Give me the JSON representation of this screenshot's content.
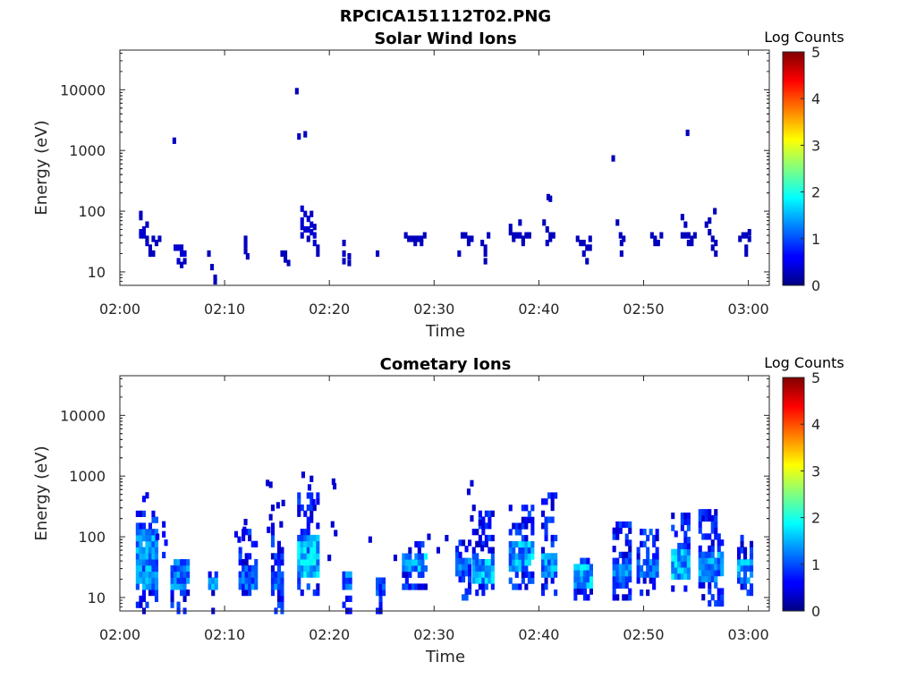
{
  "figure": {
    "title": "RPCICA151112T02.PNG"
  },
  "colorbar": {
    "label": "Log Counts",
    "range": [
      0,
      5
    ],
    "ticks": [
      "0",
      "1",
      "2",
      "3",
      "4",
      "5"
    ],
    "colormap": "jet"
  },
  "chart_data": [
    {
      "type": "heatmap",
      "title": "Solar Wind Ions",
      "xlabel": "Time",
      "ylabel": "Energy (eV)",
      "xlim": [
        "02:00",
        "03:02"
      ],
      "ylim": [
        6,
        45000
      ],
      "yscale": "log",
      "xticks": [
        "02:00",
        "02:10",
        "02:20",
        "02:30",
        "02:40",
        "02:50",
        "03:00"
      ],
      "yticks": [
        10,
        100,
        1000,
        10000
      ],
      "ytick_labels": [
        "10",
        "100",
        "1000",
        "10000"
      ],
      "grid": false,
      "points": [
        [
          2,
          90,
          0.3
        ],
        [
          2,
          80,
          0.3
        ],
        [
          2,
          45,
          0.4
        ],
        [
          2,
          40,
          0.4
        ],
        [
          2.3,
          50,
          0.4
        ],
        [
          2.3,
          40,
          0.4
        ],
        [
          2.6,
          35,
          0.3
        ],
        [
          2.6,
          30,
          0.3
        ],
        [
          2.9,
          25,
          0.3
        ],
        [
          2.9,
          20,
          0.3
        ],
        [
          2.6,
          60,
          0.3
        ],
        [
          3.2,
          35,
          0.3
        ],
        [
          3.2,
          20,
          0.3
        ],
        [
          3.5,
          30,
          0.3
        ],
        [
          3.8,
          35,
          0.3
        ],
        [
          5.2,
          1450,
          0.3
        ],
        [
          5.3,
          25,
          0.4
        ],
        [
          5.6,
          25,
          0.4
        ],
        [
          5.9,
          25,
          0.4
        ],
        [
          5.9,
          20,
          0.4
        ],
        [
          6.2,
          20,
          0.4
        ],
        [
          5.6,
          15,
          0.4
        ],
        [
          6.2,
          15,
          0.3
        ],
        [
          5.9,
          13,
          0.3
        ],
        [
          8.5,
          20,
          0.3
        ],
        [
          8.8,
          12,
          0.3
        ],
        [
          9.1,
          8,
          0.3
        ],
        [
          9.1,
          7,
          0.3
        ],
        [
          12,
          35,
          0.3
        ],
        [
          12,
          28,
          0.3
        ],
        [
          12,
          22,
          0.3
        ],
        [
          12.2,
          18,
          0.3
        ],
        [
          15.5,
          20,
          0.3
        ],
        [
          15.8,
          20,
          0.3
        ],
        [
          15.8,
          16,
          0.3
        ],
        [
          16.1,
          14,
          0.3
        ],
        [
          16.9,
          9500,
          0.3
        ],
        [
          17.1,
          1700,
          0.3
        ],
        [
          17.7,
          1850,
          0.3
        ],
        [
          17.4,
          110,
          0.4
        ],
        [
          17.7,
          90,
          0.4
        ],
        [
          17.4,
          70,
          0.4
        ],
        [
          18,
          75,
          0.4
        ],
        [
          17.4,
          55,
          0.4
        ],
        [
          17.7,
          50,
          0.4
        ],
        [
          18,
          50,
          0.4
        ],
        [
          18.3,
          60,
          0.4
        ],
        [
          18.3,
          45,
          0.4
        ],
        [
          18.6,
          40,
          0.4
        ],
        [
          17.4,
          40,
          0.4
        ],
        [
          18.6,
          30,
          0.4
        ],
        [
          18.9,
          25,
          0.3
        ],
        [
          18.9,
          20,
          0.3
        ],
        [
          18.3,
          90,
          0.3
        ],
        [
          18.6,
          55,
          0.3
        ],
        [
          18,
          35,
          0.3
        ],
        [
          21.4,
          30,
          0.3
        ],
        [
          21.4,
          20,
          0.3
        ],
        [
          21.4,
          15,
          0.3
        ],
        [
          21.9,
          18,
          0.3
        ],
        [
          21.9,
          14,
          0.3
        ],
        [
          24.6,
          20,
          0.3
        ],
        [
          27.3,
          40,
          0.3
        ],
        [
          27.6,
          35,
          0.3
        ],
        [
          27.9,
          35,
          0.3
        ],
        [
          28.2,
          35,
          0.3
        ],
        [
          28.5,
          35,
          0.3
        ],
        [
          28.8,
          35,
          0.3
        ],
        [
          29.1,
          40,
          0.3
        ],
        [
          28.2,
          30,
          0.3
        ],
        [
          28.8,
          30,
          0.3
        ],
        [
          32.4,
          20,
          0.3
        ],
        [
          32.7,
          40,
          0.3
        ],
        [
          33,
          40,
          0.3
        ],
        [
          33.3,
          35,
          0.3
        ],
        [
          33.6,
          35,
          0.3
        ],
        [
          33.3,
          30,
          0.3
        ],
        [
          34.6,
          30,
          0.3
        ],
        [
          34.9,
          25,
          0.3
        ],
        [
          34.9,
          20,
          0.3
        ],
        [
          34.9,
          15,
          0.3
        ],
        [
          35.2,
          40,
          0.3
        ],
        [
          37.3,
          55,
          0.3
        ],
        [
          37.3,
          45,
          0.3
        ],
        [
          37.6,
          40,
          0.3
        ],
        [
          37.9,
          40,
          0.3
        ],
        [
          38.2,
          40,
          0.3
        ],
        [
          38.5,
          35,
          0.3
        ],
        [
          38.8,
          40,
          0.3
        ],
        [
          37.6,
          35,
          0.3
        ],
        [
          38.5,
          30,
          0.3
        ],
        [
          39.1,
          40,
          0.3
        ],
        [
          38.2,
          65,
          0.3
        ],
        [
          40.9,
          170,
          0.3
        ],
        [
          41.1,
          160,
          0.3
        ],
        [
          40.5,
          65,
          0.3
        ],
        [
          40.8,
          50,
          0.3
        ],
        [
          41.1,
          40,
          0.3
        ],
        [
          41.1,
          35,
          0.3
        ],
        [
          41.4,
          40,
          0.3
        ],
        [
          40.8,
          30,
          0.3
        ],
        [
          43.7,
          35,
          0.3
        ],
        [
          44,
          30,
          0.3
        ],
        [
          44.3,
          30,
          0.3
        ],
        [
          44.6,
          25,
          0.3
        ],
        [
          44.9,
          25,
          0.3
        ],
        [
          44.3,
          20,
          0.3
        ],
        [
          44.6,
          15,
          0.3
        ],
        [
          44.9,
          35,
          0.3
        ],
        [
          47.1,
          740,
          0.3
        ],
        [
          47.5,
          65,
          0.3
        ],
        [
          47.8,
          40,
          0.3
        ],
        [
          48.1,
          35,
          0.3
        ],
        [
          47.9,
          30,
          0.3
        ],
        [
          47.9,
          20,
          0.3
        ],
        [
          50.8,
          40,
          0.3
        ],
        [
          51.1,
          35,
          0.3
        ],
        [
          51.4,
          30,
          0.3
        ],
        [
          51.7,
          40,
          0.3
        ],
        [
          51.1,
          30,
          0.3
        ],
        [
          53.7,
          80,
          0.3
        ],
        [
          54,
          60,
          0.3
        ],
        [
          53.7,
          40,
          0.3
        ],
        [
          54,
          40,
          0.3
        ],
        [
          54.3,
          40,
          0.3
        ],
        [
          54.6,
          35,
          0.3
        ],
        [
          54.3,
          30,
          0.3
        ],
        [
          54.6,
          30,
          0.3
        ],
        [
          54.9,
          40,
          0.3
        ],
        [
          54.2,
          1950,
          0.3
        ],
        [
          56,
          60,
          0.3
        ],
        [
          56.3,
          45,
          0.3
        ],
        [
          56.6,
          35,
          0.3
        ],
        [
          56.9,
          30,
          0.3
        ],
        [
          56.6,
          25,
          0.3
        ],
        [
          56.9,
          20,
          0.3
        ],
        [
          56.8,
          100,
          0.3
        ],
        [
          56.3,
          70,
          0.3
        ],
        [
          59.2,
          35,
          0.3
        ],
        [
          59.5,
          40,
          0.3
        ],
        [
          59.8,
          40,
          0.3
        ],
        [
          60.1,
          35,
          0.3
        ],
        [
          59.8,
          25,
          0.3
        ],
        [
          59.8,
          20,
          0.3
        ],
        [
          60.1,
          45,
          0.3
        ]
      ]
    },
    {
      "type": "heatmap",
      "title": "Cometary Ions",
      "xlabel": "Time",
      "ylabel": "Energy (eV)",
      "xlim": [
        "02:00",
        "03:02"
      ],
      "ylim": [
        6,
        45000
      ],
      "yscale": "log",
      "xticks": [
        "02:00",
        "02:10",
        "02:20",
        "02:30",
        "02:40",
        "02:50",
        "03:00"
      ],
      "yticks": [
        10,
        100,
        1000,
        10000
      ],
      "ytick_labels": [
        "10",
        "100",
        "1000",
        "10000"
      ],
      "grid": false,
      "clusters": [
        {
          "t0": 1.7,
          "t1": 3.6,
          "lo": 12,
          "hi": 120,
          "peak": 1.8,
          "top": 260,
          "bottom": 6
        },
        {
          "t0": 5.0,
          "t1": 6.6,
          "lo": 15,
          "hi": 40,
          "peak": 1.6,
          "top": 45,
          "bottom": 6
        },
        {
          "t0": 8.6,
          "t1": 9.2,
          "lo": 14,
          "hi": 22,
          "peak": 1.7,
          "top": 25,
          "bottom": 6
        },
        {
          "t0": 11.5,
          "t1": 13.2,
          "lo": 14,
          "hi": 35,
          "peak": 1.5,
          "top": 140,
          "bottom": 12
        },
        {
          "t0": 14.6,
          "t1": 15.7,
          "lo": 15,
          "hi": 30,
          "peak": 1.5,
          "top": 160,
          "bottom": 6
        },
        {
          "t0": 17.1,
          "t1": 18.9,
          "lo": 20,
          "hi": 100,
          "peak": 2.0,
          "top": 500,
          "bottom": 12
        },
        {
          "t0": 21.4,
          "t1": 22.1,
          "lo": 12,
          "hi": 25,
          "peak": 1.6,
          "top": 30,
          "bottom": 6
        },
        {
          "t0": 24.6,
          "t1": 25.2,
          "lo": 10,
          "hi": 20,
          "peak": 1.4,
          "top": 20,
          "bottom": 6
        },
        {
          "t0": 27.1,
          "t1": 29.2,
          "lo": 25,
          "hi": 55,
          "peak": 1.9,
          "top": 90,
          "bottom": 15
        },
        {
          "t0": 32.2,
          "t1": 33.6,
          "lo": 20,
          "hi": 40,
          "peak": 1.5,
          "top": 90,
          "bottom": 10
        },
        {
          "t0": 33.8,
          "t1": 35.8,
          "lo": 18,
          "hi": 45,
          "peak": 1.9,
          "top": 300,
          "bottom": 12
        },
        {
          "t0": 37.3,
          "t1": 39.4,
          "lo": 25,
          "hi": 80,
          "peak": 1.9,
          "top": 300,
          "bottom": 15
        },
        {
          "t0": 40.4,
          "t1": 41.6,
          "lo": 20,
          "hi": 60,
          "peak": 1.7,
          "top": 500,
          "bottom": 12
        },
        {
          "t0": 43.5,
          "t1": 45.2,
          "lo": 15,
          "hi": 35,
          "peak": 1.9,
          "top": 50,
          "bottom": 10
        },
        {
          "t0": 47.2,
          "t1": 48.9,
          "lo": 14,
          "hi": 50,
          "peak": 1.6,
          "top": 160,
          "bottom": 10
        },
        {
          "t0": 49.5,
          "t1": 51.3,
          "lo": 20,
          "hi": 45,
          "peak": 1.8,
          "top": 150,
          "bottom": 12
        },
        {
          "t0": 52.8,
          "t1": 54.5,
          "lo": 22,
          "hi": 60,
          "peak": 2.0,
          "top": 270,
          "bottom": 14
        },
        {
          "t0": 55.4,
          "t1": 57.6,
          "lo": 18,
          "hi": 60,
          "peak": 1.7,
          "top": 280,
          "bottom": 8
        },
        {
          "t0": 59.1,
          "t1": 60.4,
          "lo": 18,
          "hi": 45,
          "peak": 1.8,
          "top": 100,
          "bottom": 12
        }
      ],
      "points": [
        [
          2.3,
          420,
          0.6
        ],
        [
          2.6,
          480,
          0.5
        ],
        [
          3.6,
          100,
          0.5
        ],
        [
          4.2,
          160,
          0.5
        ],
        [
          4.2,
          110,
          0.6
        ],
        [
          4.4,
          80,
          0.7
        ],
        [
          4.2,
          50,
          0.8
        ],
        [
          11.1,
          110,
          0.5
        ],
        [
          11.4,
          90,
          0.5
        ],
        [
          11.9,
          130,
          0.5
        ],
        [
          12,
          175,
          0.4
        ],
        [
          14.1,
          770,
          0.4
        ],
        [
          14.4,
          720,
          0.4
        ],
        [
          14.6,
          300,
          0.4
        ],
        [
          14.4,
          210,
          0.4
        ],
        [
          15.1,
          330,
          0.4
        ],
        [
          15.6,
          360,
          0.4
        ],
        [
          15.4,
          160,
          0.4
        ],
        [
          14.2,
          130,
          0.5
        ],
        [
          17.5,
          1050,
          0.4
        ],
        [
          18.3,
          900,
          0.4
        ],
        [
          18.1,
          650,
          0.5
        ],
        [
          18.5,
          370,
          0.6
        ],
        [
          20.4,
          810,
          0.4
        ],
        [
          20.5,
          680,
          0.4
        ],
        [
          20.3,
          160,
          0.4
        ],
        [
          20.6,
          115,
          0.4
        ],
        [
          20,
          45,
          0.4
        ],
        [
          23.9,
          90,
          0.4
        ],
        [
          26.3,
          45,
          0.4
        ],
        [
          29.5,
          100,
          0.4
        ],
        [
          30.4,
          60,
          0.4
        ],
        [
          31.2,
          95,
          0.4
        ],
        [
          33.6,
          760,
          0.4
        ],
        [
          33.3,
          550,
          0.4
        ],
        [
          33.8,
          300,
          0.4
        ],
        [
          33.6,
          200,
          0.4
        ],
        [
          34.4,
          170,
          0.4
        ],
        [
          34.6,
          65,
          0.4
        ]
      ]
    }
  ]
}
